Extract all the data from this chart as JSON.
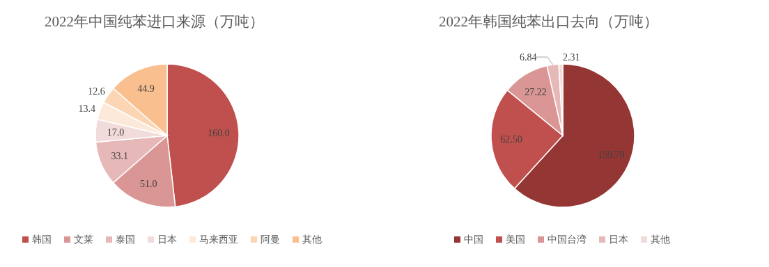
{
  "chart_data": [
    {
      "type": "pie",
      "title": "2022年中国纯苯进口来源（万吨）",
      "categories": [
        "韩国",
        "文莱",
        "泰国",
        "日本",
        "马来西亚",
        "阿曼",
        "其他"
      ],
      "values": [
        160.0,
        51.0,
        33.1,
        17.0,
        13.4,
        12.6,
        44.9
      ],
      "value_labels": [
        "160.0",
        "51.0",
        "33.1",
        "17.0",
        "13.4",
        "12.6",
        "44.9"
      ],
      "colors": [
        "#c0504d",
        "#d99694",
        "#e6b9b8",
        "#f2dcdb",
        "#fde9d9",
        "#fcd5b4",
        "#fabf8f"
      ],
      "legend": "bottom"
    },
    {
      "type": "pie",
      "title": "2022年韩国纯苯出口去向（万吨）",
      "categories": [
        "中国",
        "美国",
        "中国台湾",
        "日本",
        "其他"
      ],
      "values": [
        159.7,
        62.5,
        27.22,
        6.84,
        2.31
      ],
      "value_labels": [
        "159.70",
        "62.50",
        "27.22",
        "6.84",
        "2.31"
      ],
      "colors": [
        "#943634",
        "#c0504d",
        "#d99694",
        "#e6b9b8",
        "#f2dcdb"
      ],
      "legend": "bottom"
    }
  ]
}
